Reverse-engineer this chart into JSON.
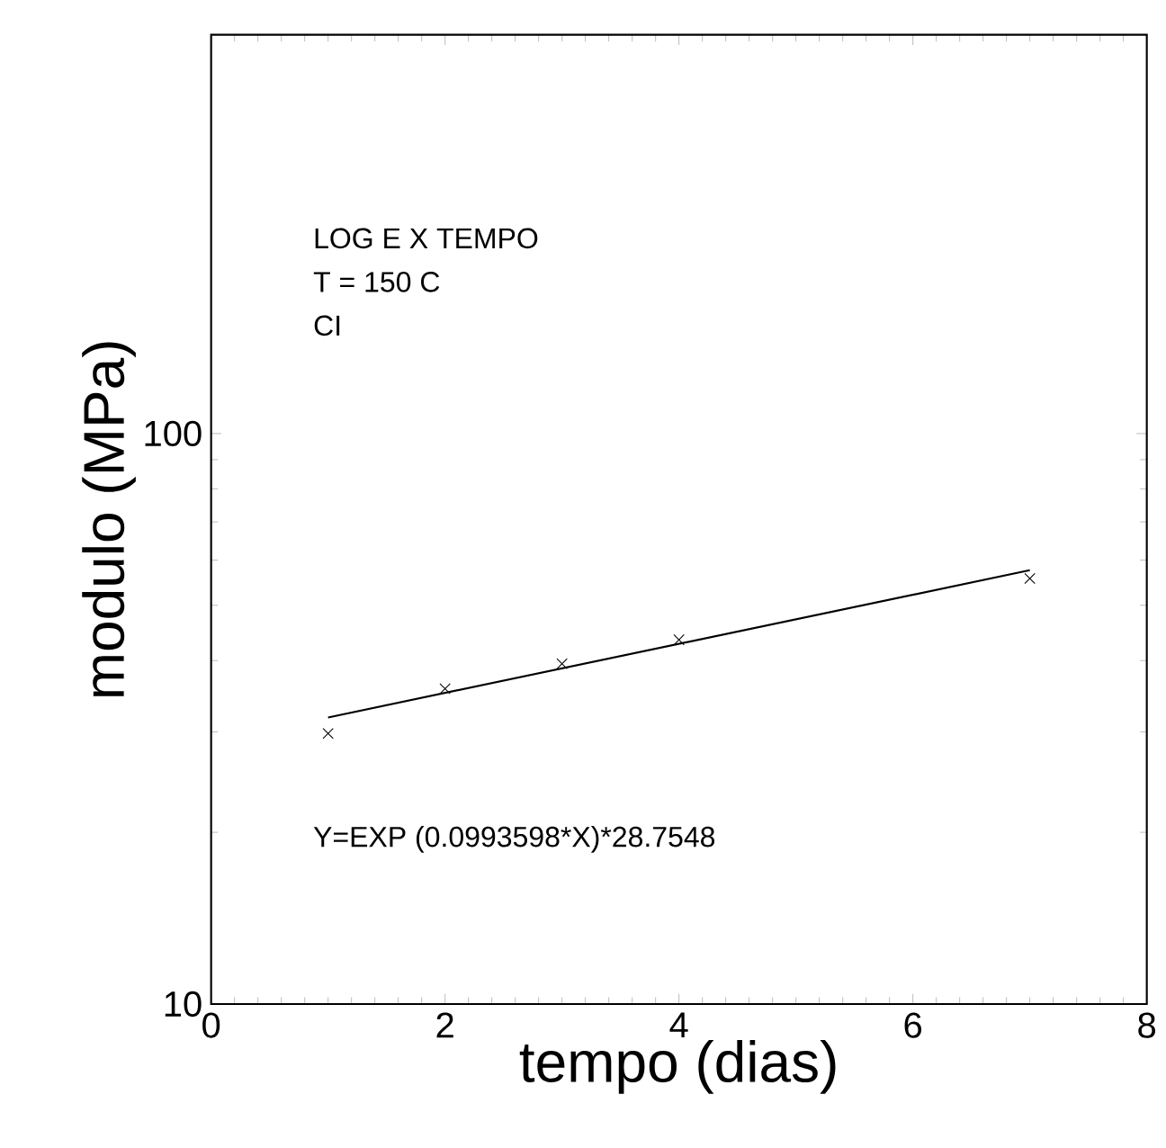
{
  "chart_data": {
    "type": "scatter",
    "xlabel": "tempo  (dias)",
    "ylabel": "modulo  (MPa)",
    "annotations": [
      "LOG  E  X  TEMPO",
      "T  =  150  C",
      "CI",
      "Y=EXP  (0.0993598*X)*28.7548"
    ],
    "xlim": [
      0,
      8
    ],
    "xticks": [
      0,
      2,
      4,
      6,
      8
    ],
    "ylim": [
      10,
      500
    ],
    "yticks": [
      10,
      100
    ],
    "log": "y",
    "marker": "cross",
    "color": "#000000",
    "series": [
      {
        "x": [
          1,
          2,
          3,
          4,
          7
        ],
        "values": [
          29.8,
          35.7,
          39.5,
          43.5,
          55.7
        ]
      },
      {
        "type": "line",
        "marker": "none",
        "x": [
          1,
          7
        ],
        "values": [
          31.8,
          57.6
        ]
      }
    ]
  }
}
